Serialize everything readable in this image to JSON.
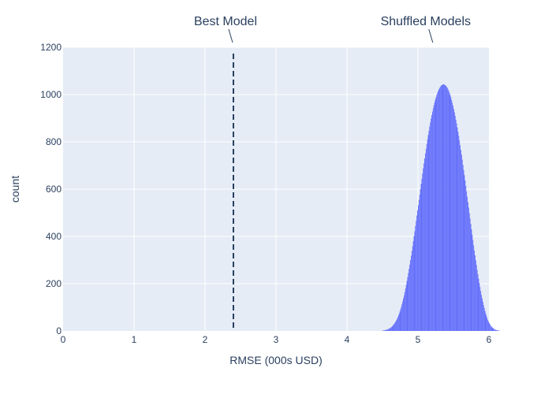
{
  "chart_data": {
    "type": "histogram",
    "title": "",
    "xlabel": "RMSE (000s USD)",
    "ylabel": "count",
    "xlim": [
      0,
      6
    ],
    "ylim": [
      0,
      1200
    ],
    "x_ticks": [
      "0",
      "1",
      "2",
      "3",
      "4",
      "5",
      "6"
    ],
    "y_ticks": [
      "0",
      "200",
      "400",
      "600",
      "800",
      "1000",
      "1200"
    ],
    "grid": true,
    "legend": "none",
    "colors": {
      "plot_background": "#e5ecf6",
      "bars": "#636efa",
      "grid": "#ffffff",
      "text": "#2a3f5f",
      "reference_line": "#2a3f5f"
    },
    "series": [
      {
        "kind": "histogram",
        "color": "#636efa",
        "bin_width": 0.01,
        "bin_start": 4.5,
        "counts": [
          2,
          2,
          3,
          3,
          4,
          5,
          6,
          7,
          8,
          10,
          12,
          14,
          16,
          19,
          22,
          26,
          30,
          34,
          39,
          45,
          51,
          58,
          65,
          73,
          82,
          92,
          102,
          113,
          125,
          138,
          151,
          165,
          180,
          195,
          211,
          228,
          245,
          263,
          281,
          300,
          319,
          339,
          359,
          380,
          401,
          422,
          444,
          466,
          488,
          510,
          532,
          555,
          577,
          600,
          622,
          644,
          666,
          688,
          709,
          730,
          751,
          771,
          791,
          810,
          829,
          847,
          865,
          882,
          898,
          913,
          928,
          942,
          955,
          967,
          979,
          989,
          999,
          1007,
          1015,
          1022,
          1028,
          1033,
          1037,
          1040,
          1042,
          1043,
          1043,
          1042,
          1040,
          1037,
          1033,
          1028,
          1022,
          1015,
          1007,
          998,
          988,
          977,
          965,
          953,
          939,
          925,
          910,
          894,
          878,
          861,
          843,
          825,
          806,
          786,
          766,
          746,
          725,
          703,
          681,
          659,
          637,
          614,
          591,
          568,
          545,
          522,
          499,
          476,
          453,
          430,
          407,
          385,
          363,
          341,
          320,
          299,
          279,
          259,
          240,
          221,
          203,
          186,
          169,
          153,
          138,
          124,
          110,
          97,
          85,
          74,
          64,
          55,
          47,
          40,
          34,
          28,
          23,
          19,
          16,
          13,
          10,
          8,
          6,
          5,
          4,
          3,
          2,
          2,
          1,
          1
        ]
      }
    ],
    "annotations": [
      {
        "text": "Best Model",
        "x": 2.4,
        "line": "dashed-vertical"
      },
      {
        "text": "Shuffled Models",
        "x": 5.22,
        "line": "none"
      }
    ]
  }
}
